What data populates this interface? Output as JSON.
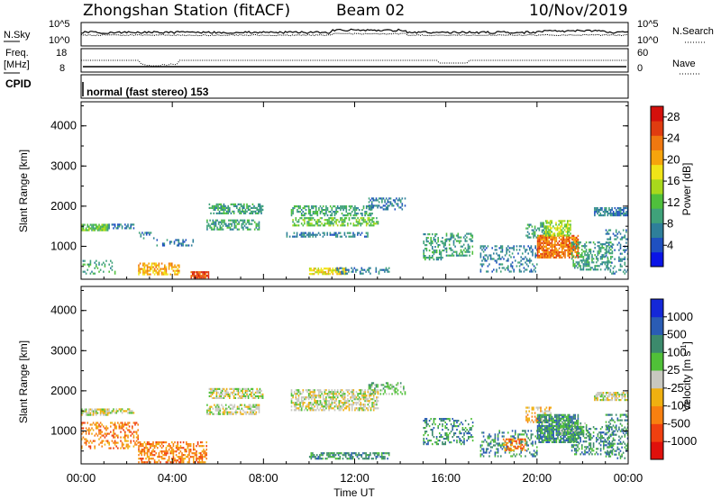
{
  "header": {
    "title": "Zhongshan Station (fitACF)",
    "beam": "Beam 02",
    "date": "10/Nov/2019"
  },
  "top_panels": {
    "nsky_label": "N.Sky",
    "nsky_ticks": [
      "10^5",
      "10^0"
    ],
    "nsearch_label": "N.Search",
    "nsearch_ticks": [
      "10^5",
      "10^0"
    ],
    "freq_label": "Freq.",
    "freq_unit": "[MHz]",
    "freq_ticks": [
      "18",
      "8"
    ],
    "nave_label": "Nave",
    "nave_ticks": [
      "60",
      "0"
    ],
    "cpid_label": "CPID",
    "cpid_text": "normal (fast stereo) 153"
  },
  "chart_data": [
    {
      "type": "heatmap",
      "title": "",
      "xlabel": "",
      "ylabel": "Slant Range [km]",
      "ylim": [
        180,
        4600
      ],
      "yticks": [
        "1000",
        "2000",
        "3000",
        "4000"
      ],
      "xlim": [
        "00:00",
        "24:00"
      ],
      "colorbar": {
        "label": "Power [dB]",
        "ticks": [
          "4",
          "8",
          "12",
          "16",
          "20",
          "24",
          "28"
        ],
        "range": [
          0,
          30
        ],
        "colors": [
          "#0a14e6",
          "#1f50c0",
          "#2e7f9a",
          "#3fa27a",
          "#4fc03c",
          "#a8d81c",
          "#f0e418",
          "#f6a40c",
          "#f07810",
          "#e03c10",
          "#d4100c"
        ]
      },
      "regions": [
        {
          "t0": 0.0,
          "t1": 1.2,
          "r0": 1380,
          "r1": 1560,
          "level": 4,
          "density": 0.8
        },
        {
          "t0": 1.2,
          "t1": 2.3,
          "r0": 1430,
          "r1": 1530,
          "level": 2,
          "density": 0.5
        },
        {
          "t0": 2.4,
          "t1": 3.2,
          "r0": 1180,
          "r1": 1320,
          "level": 2,
          "density": 0.3
        },
        {
          "t0": 3.3,
          "t1": 5.0,
          "r0": 1000,
          "r1": 1180,
          "level": 2,
          "density": 0.35
        },
        {
          "t0": 0.0,
          "t1": 1.5,
          "r0": 300,
          "r1": 620,
          "level": 3,
          "density": 0.25
        },
        {
          "t0": 2.5,
          "t1": 4.3,
          "r0": 280,
          "r1": 560,
          "level": 7,
          "density": 0.55
        },
        {
          "t0": 4.8,
          "t1": 5.6,
          "r0": 200,
          "r1": 360,
          "level": 9,
          "density": 0.9
        },
        {
          "t0": 5.5,
          "t1": 7.8,
          "r0": 1400,
          "r1": 1650,
          "level": 3,
          "density": 0.55
        },
        {
          "t0": 5.6,
          "t1": 8.0,
          "r0": 1800,
          "r1": 2050,
          "level": 3,
          "density": 0.6
        },
        {
          "t0": 9.2,
          "t1": 13.0,
          "r0": 1500,
          "r1": 1720,
          "level": 4,
          "density": 0.55
        },
        {
          "t0": 9.2,
          "t1": 12.8,
          "r0": 1750,
          "r1": 2000,
          "level": 3,
          "density": 0.55
        },
        {
          "t0": 9.0,
          "t1": 12.6,
          "r0": 1220,
          "r1": 1330,
          "level": 2,
          "density": 0.5
        },
        {
          "t0": 12.6,
          "t1": 14.2,
          "r0": 1900,
          "r1": 2200,
          "level": 2,
          "density": 0.4
        },
        {
          "t0": 10.0,
          "t1": 11.6,
          "r0": 290,
          "r1": 430,
          "level": 6,
          "density": 0.7
        },
        {
          "t0": 11.2,
          "t1": 13.5,
          "r0": 300,
          "r1": 440,
          "level": 2,
          "density": 0.4
        },
        {
          "t0": 15.0,
          "t1": 16.0,
          "r0": 650,
          "r1": 1300,
          "level": 3,
          "density": 0.35
        },
        {
          "t0": 16.0,
          "t1": 17.2,
          "r0": 750,
          "r1": 1300,
          "level": 3,
          "density": 0.35
        },
        {
          "t0": 17.5,
          "t1": 20.0,
          "r0": 350,
          "r1": 1000,
          "level": 2,
          "density": 0.3
        },
        {
          "t0": 19.5,
          "t1": 20.5,
          "r0": 1200,
          "r1": 1600,
          "level": 3,
          "density": 0.45
        },
        {
          "t0": 20.0,
          "t1": 21.8,
          "r0": 700,
          "r1": 1250,
          "level": 8,
          "density": 0.8
        },
        {
          "t0": 20.3,
          "t1": 21.5,
          "r0": 1250,
          "r1": 1650,
          "level": 5,
          "density": 0.6
        },
        {
          "t0": 21.5,
          "t1": 23.3,
          "r0": 400,
          "r1": 1100,
          "level": 3,
          "density": 0.4
        },
        {
          "t0": 22.5,
          "t1": 24.0,
          "r0": 1750,
          "r1": 1950,
          "level": 2,
          "density": 0.7
        },
        {
          "t0": 23.0,
          "t1": 24.0,
          "r0": 300,
          "r1": 1400,
          "level": 2,
          "density": 0.3
        }
      ]
    },
    {
      "type": "heatmap",
      "title": "",
      "xlabel": "Time UT",
      "ylabel": "Slant Range [km]",
      "ylim": [
        180,
        4600
      ],
      "yticks": [
        "1000",
        "2000",
        "3000",
        "4000"
      ],
      "xticks": [
        "00:00",
        "04:00",
        "08:00",
        "12:00",
        "16:00",
        "20:00",
        "00:00"
      ],
      "xlim": [
        "00:00",
        "24:00"
      ],
      "colorbar": {
        "label": "Velocity [m s^-1]",
        "ticks": [
          "-1000",
          "-500",
          "-100",
          "-25",
          "25",
          "100",
          "500",
          "1000"
        ],
        "colors": [
          "#e0100c",
          "#f04010",
          "#f88010",
          "#f0b010",
          "#c8c8c0",
          "#50c038",
          "#3c8a6c",
          "#2a5cb4",
          "#1428d8"
        ]
      },
      "regions": [
        {
          "t0": 0.0,
          "t1": 1.2,
          "r0": 1380,
          "r1": 1560,
          "level": 4,
          "density": 0.8
        },
        {
          "t0": 0.0,
          "t1": 2.5,
          "r0": 550,
          "r1": 1200,
          "level": 2,
          "density": 0.35
        },
        {
          "t0": 2.5,
          "t1": 5.5,
          "r0": 200,
          "r1": 700,
          "level": 2,
          "density": 0.55
        },
        {
          "t0": 1.2,
          "t1": 2.3,
          "r0": 1430,
          "r1": 1530,
          "level": 4,
          "density": 0.5
        },
        {
          "t0": 5.5,
          "t1": 7.8,
          "r0": 1400,
          "r1": 1650,
          "level": 4,
          "density": 0.55
        },
        {
          "t0": 5.6,
          "t1": 8.0,
          "r0": 1800,
          "r1": 2050,
          "level": 4,
          "density": 0.6
        },
        {
          "t0": 9.2,
          "t1": 13.0,
          "r0": 1500,
          "r1": 2000,
          "level": 4,
          "density": 0.6
        },
        {
          "t0": 12.6,
          "t1": 14.2,
          "r0": 1900,
          "r1": 2200,
          "level": 5,
          "density": 0.4
        },
        {
          "t0": 10.0,
          "t1": 13.5,
          "r0": 290,
          "r1": 440,
          "level": 6,
          "density": 0.55
        },
        {
          "t0": 15.0,
          "t1": 17.2,
          "r0": 650,
          "r1": 1300,
          "level": 6,
          "density": 0.35
        },
        {
          "t0": 17.5,
          "t1": 20.0,
          "r0": 350,
          "r1": 1000,
          "level": 6,
          "density": 0.3
        },
        {
          "t0": 18.5,
          "t1": 19.5,
          "r0": 500,
          "r1": 800,
          "level": 2,
          "density": 0.5
        },
        {
          "t0": 19.5,
          "t1": 20.6,
          "r0": 1200,
          "r1": 1600,
          "level": 3,
          "density": 0.45
        },
        {
          "t0": 20.0,
          "t1": 21.8,
          "r0": 700,
          "r1": 1400,
          "level": 6,
          "density": 0.8
        },
        {
          "t0": 21.0,
          "t1": 22.2,
          "r0": 900,
          "r1": 1200,
          "level": 5,
          "density": 0.5
        },
        {
          "t0": 21.5,
          "t1": 23.3,
          "r0": 400,
          "r1": 1100,
          "level": 6,
          "density": 0.4
        },
        {
          "t0": 22.5,
          "t1": 24.0,
          "r0": 1750,
          "r1": 1950,
          "level": 4,
          "density": 0.7
        },
        {
          "t0": 23.0,
          "t1": 24.0,
          "r0": 300,
          "r1": 1400,
          "level": 6,
          "density": 0.3
        }
      ]
    }
  ]
}
